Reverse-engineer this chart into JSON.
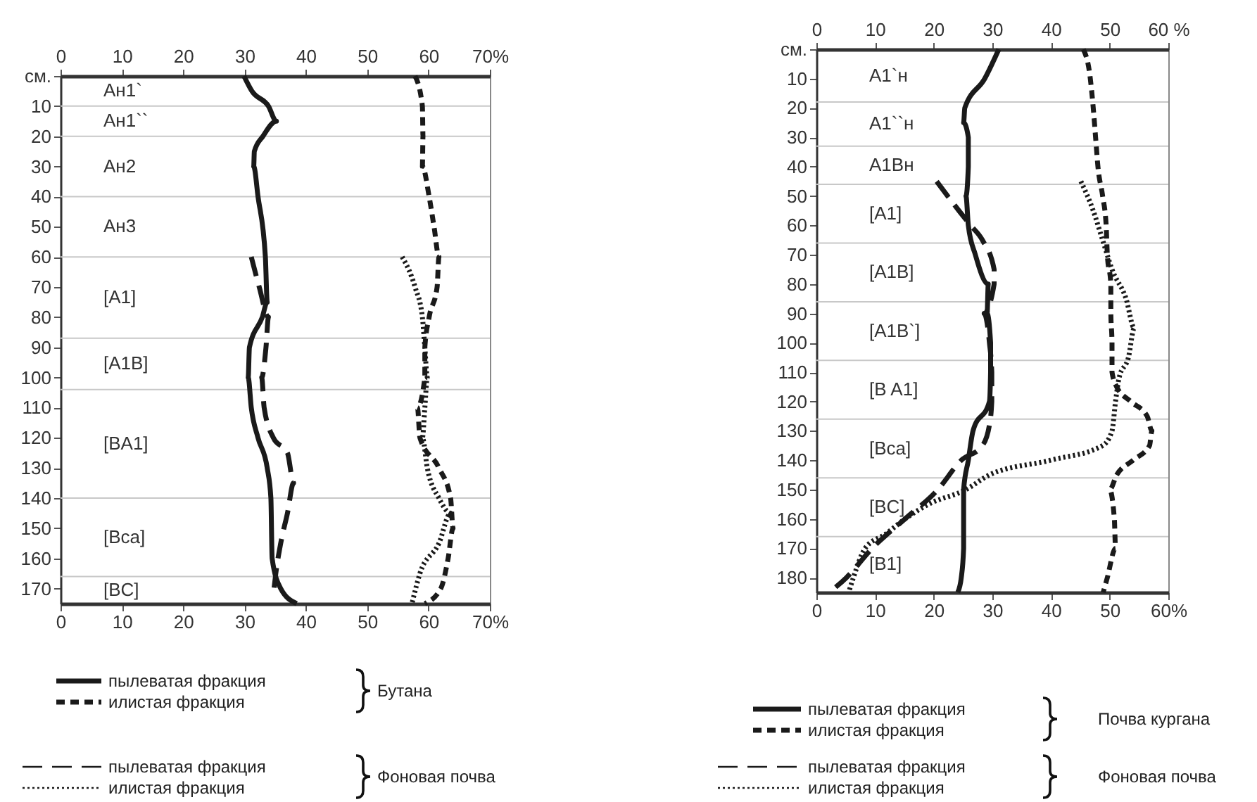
{
  "chart_data": [
    {
      "type": "line",
      "legend": "bottom",
      "xlim": [
        0,
        70
      ],
      "xticks": [
        0,
        10,
        20,
        30,
        40,
        50,
        60,
        {
          "value": 70,
          "label": "70%"
        }
      ],
      "x2lim": [
        0,
        70
      ],
      "x2ticks": [
        0,
        10,
        20,
        30,
        40,
        50,
        60,
        {
          "value": 70,
          "label": "70%"
        }
      ],
      "ylim": [
        175,
        0
      ],
      "yticks": [
        {
          "value": 0,
          "label": "см."
        },
        10,
        20,
        30,
        40,
        50,
        60,
        70,
        80,
        90,
        100,
        110,
        120,
        130,
        140,
        150,
        160,
        170
      ],
      "ref_lines": [
        {
          "axis": "y",
          "value": 10,
          "color": "#c8c8c8"
        },
        {
          "axis": "y",
          "value": 20,
          "color": "#c8c8c8"
        },
        {
          "axis": "y",
          "value": 40,
          "color": "#c8c8c8"
        },
        {
          "axis": "y",
          "value": 60,
          "color": "#c8c8c8"
        },
        {
          "axis": "y",
          "value": 87,
          "color": "#c8c8c8"
        },
        {
          "axis": "y",
          "value": 104,
          "color": "#c8c8c8"
        },
        {
          "axis": "y",
          "value": 140,
          "color": "#c8c8c8"
        },
        {
          "axis": "y",
          "value": 166,
          "color": "#c8c8c8"
        }
      ],
      "annotations": [
        "Бутана",
        "Фоновая почва",
        "Ан1`",
        "Ан1``",
        "Ан2",
        "Ан3",
        "[A1]",
        "[A1B]",
        "[BA1]",
        "[Bca]",
        "[BC]"
      ],
      "series": [
        {
          "name": "пылеватая фракция",
          "color": "#1a1a1a",
          "line_style": "solid",
          "x": [
            29.9,
            31.2,
            33.9,
            35.2,
            33,
            31.6,
            31.5,
            32.2,
            33.4,
            33.7,
            32.9,
            30.8,
            30.6,
            31.1,
            32.2,
            33.7,
            34.3,
            34.5,
            35.9,
            38.5
          ],
          "values": [
            0,
            5,
            10,
            15,
            20,
            25,
            30,
            40,
            60,
            75,
            80,
            90,
            100,
            110,
            120,
            130,
            140,
            160,
            170,
            175
          ]
        },
        {
          "name": "илистая фракция",
          "color": "#1a1a1a",
          "line_style": "dashed",
          "x": [
            57.8,
            59,
            59.1,
            59,
            60.1,
            60.9,
            61.7,
            61.4,
            60.1,
            59.4,
            59.4,
            58.2,
            58.6,
            61.7,
            63.6,
            64,
            63.2,
            62,
            59.4
          ],
          "values": [
            0,
            10,
            20,
            30,
            40,
            50,
            60,
            70,
            80,
            90,
            100,
            110,
            120,
            130,
            140,
            150,
            160,
            170,
            175
          ]
        },
        {
          "name": "пылеватая фракция",
          "color": "#1a1a1a",
          "line_style": "dashed",
          "x": [
            31.1,
            32.4,
            33.9,
            33.5,
            32.8,
            33.2,
            34.7,
            37,
            38,
            37,
            35.9,
            35.1,
            34.7
          ],
          "values": [
            60,
            70,
            80,
            90,
            100,
            110,
            120,
            125,
            135,
            145,
            155,
            165,
            172
          ]
        },
        {
          "name": "илистая фракция",
          "color": "#1a1a1a",
          "line_style": "dotted",
          "x": [
            55.7,
            57.8,
            59,
            59.4,
            59.8,
            59.4,
            59,
            59.8,
            61.7,
            63.6,
            61.7,
            58.6,
            57.3
          ],
          "values": [
            60,
            70,
            80,
            90,
            100,
            110,
            120,
            130,
            140,
            145,
            155,
            165,
            175
          ]
        }
      ]
    },
    {
      "type": "line",
      "legend": "bottom",
      "xlim": [
        0,
        60
      ],
      "xticks": [
        0,
        10,
        20,
        30,
        40,
        50,
        {
          "value": 60,
          "label": "60%"
        }
      ],
      "x2lim": [
        0,
        60
      ],
      "x2ticks": [
        0,
        10,
        20,
        30,
        40,
        50,
        {
          "value": 60,
          "label": "60 %"
        }
      ],
      "ylim": [
        185,
        0
      ],
      "yticks": [
        {
          "value": 0,
          "label": "см."
        },
        10,
        20,
        30,
        40,
        50,
        60,
        70,
        80,
        90,
        100,
        110,
        120,
        130,
        140,
        150,
        160,
        170,
        180
      ],
      "ref_lines": [
        {
          "axis": "y",
          "value": 18,
          "color": "#c8c8c8"
        },
        {
          "axis": "y",
          "value": 33,
          "color": "#c8c8c8"
        },
        {
          "axis": "y",
          "value": 46,
          "color": "#c8c8c8"
        },
        {
          "axis": "y",
          "value": 66,
          "color": "#c8c8c8"
        },
        {
          "axis": "y",
          "value": 86,
          "color": "#c8c8c8"
        },
        {
          "axis": "y",
          "value": 106,
          "color": "#c8c8c8"
        },
        {
          "axis": "y",
          "value": 126,
          "color": "#c8c8c8"
        },
        {
          "axis": "y",
          "value": 146,
          "color": "#c8c8c8"
        },
        {
          "axis": "y",
          "value": 166,
          "color": "#c8c8c8"
        }
      ],
      "annotations": [
        "Почва кургана",
        "Фоновая почва",
        "A1`н",
        "A1``н",
        "A1Вн",
        "[A1]",
        "[A1B]",
        "[A1B`]",
        "[B A1]",
        "[Bca]",
        "[BC]",
        "[B1]"
      ],
      "series": [
        {
          "name": "пылеватая фракция",
          "color": "#1a1a1a",
          "line_style": "solid",
          "x": [
            31.1,
            28.7,
            25.3,
            25.1,
            25.9,
            25.9,
            25.5,
            25.9,
            27.1,
            29.3,
            29.1,
            29.7,
            29.7,
            29.5,
            26.7,
            25.9,
            25.1,
            25.1,
            25.1,
            24.7,
            24.1
          ],
          "values": [
            0,
            10,
            20,
            25,
            30,
            40,
            50,
            60,
            70,
            80,
            90,
            100,
            110,
            120,
            130,
            140,
            150,
            160,
            170,
            180,
            185
          ]
        },
        {
          "name": "илистая фракция",
          "color": "#1a1a1a",
          "line_style": "dashed",
          "x": [
            45.5,
            46.7,
            47.2,
            47.6,
            48,
            48.8,
            49.4,
            49.6,
            50.2,
            50.2,
            50.4,
            50.4,
            51.2,
            53.6,
            56.4,
            57.2,
            56.8,
            54,
            51.2,
            50,
            50.8,
            51,
            49.6,
            48.9
          ],
          "values": [
            0,
            10,
            20,
            30,
            40,
            50,
            60,
            70,
            80,
            90,
            100,
            110,
            115,
            120,
            125,
            130,
            135,
            140,
            145,
            150,
            160,
            170,
            180,
            185
          ]
        },
        {
          "name": "пылеватая фракция",
          "color": "#1a1a1a",
          "line_style": "dashed",
          "x": [
            20.5,
            24.3,
            26.3,
            28.3,
            30.3,
            30.3,
            28.6,
            29.5,
            29.9,
            29.9,
            29.5,
            28.3,
            24.7,
            20.7,
            15.1,
            9.5,
            5.1,
            2.2
          ],
          "values": [
            45,
            55,
            60,
            65,
            75,
            80,
            90,
            100,
            110,
            120,
            128,
            135,
            140,
            150,
            160,
            170,
            180,
            185
          ]
        },
        {
          "name": "илистая фракция",
          "color": "#1a1a1a",
          "line_style": "dotted",
          "x": [
            45.1,
            47.2,
            48.8,
            50.4,
            52.8,
            54.2,
            53.2,
            51.6,
            51,
            50.4,
            48.8,
            39.9,
            29.5,
            25.5,
            19.1,
            15.1,
            11.9,
            8.3,
            6.3,
            5.5
          ],
          "values": [
            45,
            55,
            65,
            75,
            85,
            95,
            105,
            112,
            120,
            130,
            135,
            140,
            145,
            150,
            155,
            160,
            165,
            170,
            180,
            185
          ]
        }
      ]
    }
  ]
}
